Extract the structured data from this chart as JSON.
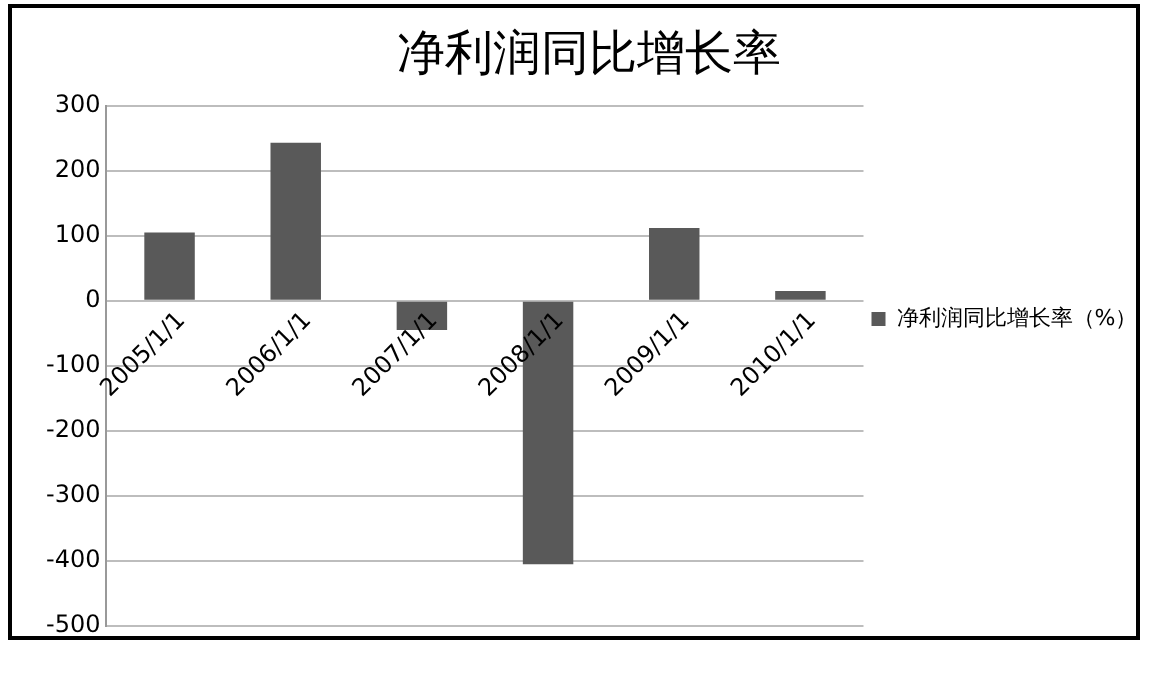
{
  "chart_data": {
    "type": "bar",
    "title": "净利润同比增长率",
    "categories": [
      "2005/1/1",
      "2006/1/1",
      "2007/1/1",
      "2008/1/1",
      "2009/1/1",
      "2010/1/1"
    ],
    "series": [
      {
        "name": "净利润同比增长率（%）",
        "color": "#595959",
        "values": [
          105,
          243,
          -45,
          -405,
          112,
          15
        ]
      }
    ],
    "ylim": [
      -500,
      300
    ],
    "yticks": [
      -500,
      -400,
      -300,
      -200,
      -100,
      0,
      100,
      200,
      300
    ],
    "grid": "y",
    "legend": "right"
  }
}
